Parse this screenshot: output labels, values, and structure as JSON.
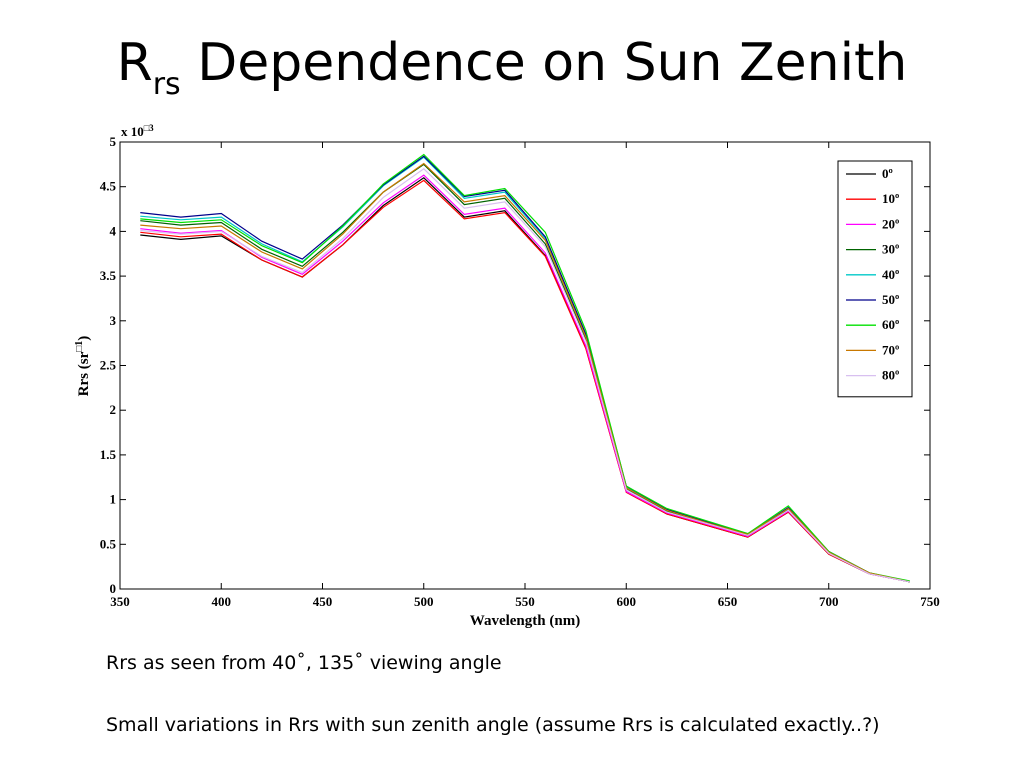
{
  "slide": {
    "title_main": "R",
    "title_sub": "rs",
    "title_rest": " Dependence on Sun Zenith",
    "notes": [
      "Rrs as seen from 40˚, 135˚ viewing angle",
      "Small variations in Rrs with sun zenith angle (assume Rrs is calculated exactly..?)"
    ]
  },
  "chart_data": {
    "type": "line",
    "title": "",
    "xlabel": "Wavelength (nm)",
    "ylabel_prefix": "Rrs (sr",
    "ylabel_exp": "□1",
    "ylabel_suffix": ")",
    "y_scale_base": "x 10",
    "y_scale_exp": "□3",
    "xlim": [
      350,
      750
    ],
    "ylim": [
      0,
      5
    ],
    "xticks": [
      350,
      400,
      450,
      500,
      550,
      600,
      650,
      700,
      750
    ],
    "yticks": [
      0,
      0.5,
      1,
      1.5,
      2,
      2.5,
      3,
      3.5,
      4,
      4.5,
      5
    ],
    "grid": false,
    "legend_position": "top-right",
    "x": [
      360,
      380,
      400,
      420,
      440,
      460,
      480,
      500,
      520,
      540,
      560,
      580,
      600,
      620,
      640,
      660,
      680,
      700,
      720,
      740
    ],
    "series": [
      {
        "name": "0º",
        "color": "#000000",
        "values": [
          3.96,
          3.91,
          3.95,
          3.68,
          3.49,
          3.85,
          4.29,
          4.6,
          4.16,
          4.23,
          3.73,
          2.7,
          1.09,
          0.84,
          0.71,
          0.58,
          0.86,
          0.39,
          0.17,
          0.08
        ]
      },
      {
        "name": "10º",
        "color": "#ff0000",
        "values": [
          3.99,
          3.94,
          3.97,
          3.68,
          3.49,
          3.85,
          4.27,
          4.57,
          4.14,
          4.21,
          3.72,
          2.69,
          1.08,
          0.84,
          0.71,
          0.58,
          0.86,
          0.39,
          0.17,
          0.08
        ]
      },
      {
        "name": "20º",
        "color": "#ff00ff",
        "values": [
          4.03,
          3.98,
          4.01,
          3.71,
          3.52,
          3.89,
          4.32,
          4.63,
          4.19,
          4.26,
          3.76,
          2.72,
          1.09,
          0.85,
          0.72,
          0.59,
          0.87,
          0.4,
          0.17,
          0.08
        ]
      },
      {
        "name": "30º",
        "color": "#006400",
        "values": [
          4.12,
          4.07,
          4.1,
          3.8,
          3.61,
          3.99,
          4.44,
          4.75,
          4.3,
          4.37,
          3.86,
          2.79,
          1.12,
          0.87,
          0.74,
          0.6,
          0.89,
          0.41,
          0.18,
          0.08
        ]
      },
      {
        "name": "40º",
        "color": "#00c8c8",
        "values": [
          4.17,
          4.13,
          4.16,
          3.86,
          3.66,
          4.05,
          4.51,
          4.83,
          4.37,
          4.44,
          3.92,
          2.84,
          1.14,
          0.89,
          0.75,
          0.61,
          0.9,
          0.41,
          0.18,
          0.08
        ]
      },
      {
        "name": "50º",
        "color": "#00008b",
        "values": [
          4.21,
          4.16,
          4.2,
          3.89,
          3.69,
          4.07,
          4.52,
          4.84,
          4.39,
          4.46,
          3.94,
          2.85,
          1.15,
          0.89,
          0.75,
          0.61,
          0.91,
          0.42,
          0.18,
          0.08
        ]
      },
      {
        "name": "60º",
        "color": "#00e000",
        "values": [
          4.14,
          4.1,
          4.13,
          3.84,
          3.65,
          4.06,
          4.53,
          4.86,
          4.4,
          4.48,
          3.99,
          2.89,
          1.15,
          0.9,
          0.76,
          0.62,
          0.93,
          0.42,
          0.18,
          0.09
        ]
      },
      {
        "name": "70º",
        "color": "#c87800",
        "values": [
          4.07,
          4.03,
          4.06,
          3.77,
          3.58,
          3.97,
          4.44,
          4.76,
          4.33,
          4.4,
          3.9,
          2.82,
          1.13,
          0.88,
          0.74,
          0.61,
          0.9,
          0.41,
          0.18,
          0.08
        ]
      },
      {
        "name": "80º",
        "color": "#d8c0f0",
        "values": [
          4.01,
          3.97,
          4.0,
          3.72,
          3.54,
          3.92,
          4.38,
          4.7,
          4.26,
          4.33,
          3.83,
          2.77,
          1.11,
          0.86,
          0.73,
          0.6,
          0.88,
          0.4,
          0.17,
          0.08
        ]
      }
    ]
  }
}
